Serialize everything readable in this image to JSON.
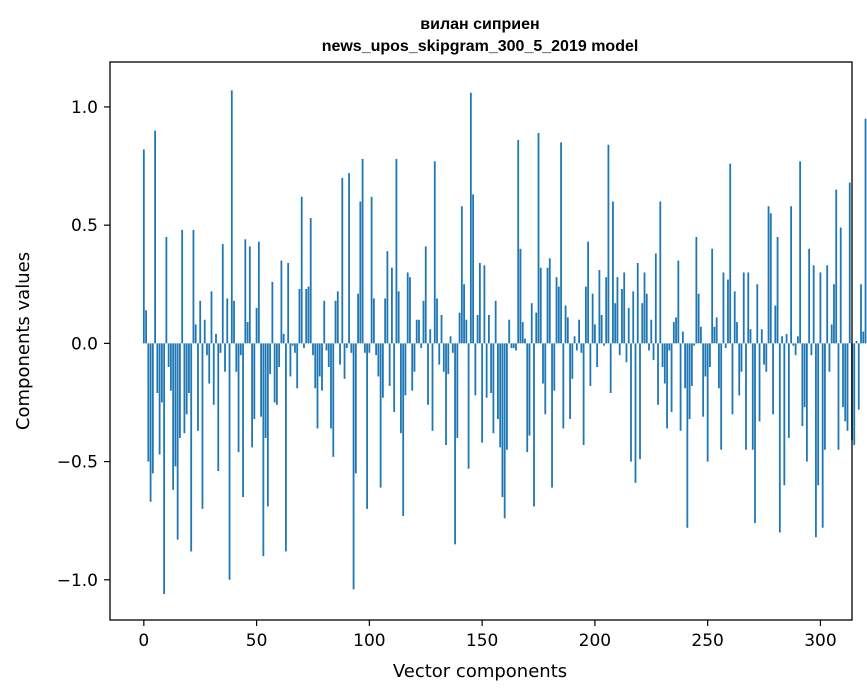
{
  "chart_data": {
    "type": "bar",
    "title": "вилан сиприен",
    "subtitle": "news_upos_skipgram_300_5_2019 model",
    "xlabel": "Vector components",
    "ylabel": "Components values",
    "xlim": [
      -15,
      314
    ],
    "ylim": [
      -1.17,
      1.19
    ],
    "xticks": [
      0,
      50,
      100,
      150,
      200,
      250,
      300
    ],
    "xtick_labels": [
      "0",
      "50",
      "100",
      "150",
      "200",
      "250",
      "300"
    ],
    "yticks": [
      -1.0,
      -0.5,
      0.0,
      0.5,
      1.0
    ],
    "ytick_labels": [
      "−1.0",
      "−0.5",
      "0.0",
      "0.5",
      "1.0"
    ],
    "color": "#1f77b4",
    "grid": false,
    "values": [
      0.82,
      0.14,
      -0.5,
      -0.67,
      -0.55,
      0.9,
      -0.21,
      -0.47,
      -0.25,
      -1.06,
      0.45,
      -0.1,
      -0.2,
      -0.62,
      -0.52,
      -0.83,
      -0.4,
      0.48,
      -0.38,
      -0.3,
      -0.21,
      -0.88,
      0.48,
      0.08,
      -0.37,
      0.18,
      -0.7,
      0.1,
      -0.05,
      -0.17,
      0.22,
      -0.26,
      0.04,
      -0.54,
      -0.04,
      0.42,
      -0.12,
      0.19,
      -1.0,
      1.07,
      0.18,
      -0.12,
      -0.46,
      -0.05,
      -0.65,
      0.44,
      0.09,
      0.41,
      -0.44,
      -0.32,
      0.15,
      0.43,
      -0.31,
      -0.9,
      -0.4,
      -0.69,
      -0.13,
      0.26,
      -0.25,
      -0.26,
      -0.1,
      0.35,
      0.04,
      -0.88,
      0.34,
      -0.14,
      -0.01,
      -0.04,
      -0.19,
      0.23,
      0.62,
      -0.02,
      0.23,
      0.24,
      0.53,
      -0.05,
      -0.19,
      -0.36,
      -0.14,
      -0.2,
      0.18,
      -0.03,
      -0.1,
      -0.36,
      -0.48,
      0.18,
      0.22,
      -0.09,
      0.7,
      -0.15,
      -0.02,
      0.72,
      -0.04,
      -1.04,
      -0.55,
      0.21,
      0.6,
      0.78,
      -0.04,
      -0.7,
      -0.04,
      0.62,
      0.19,
      -0.05,
      -0.14,
      -0.61,
      -0.23,
      0.19,
      0.39,
      -0.18,
      0.32,
      -0.29,
      0.78,
      0.22,
      -0.38,
      -0.73,
      -0.22,
      0.3,
      0.28,
      -0.2,
      -0.12,
      0.1,
      0.1,
      -0.02,
      0.18,
      0.41,
      -0.26,
      0.06,
      -0.37,
      0.77,
      0.19,
      -0.09,
      0.12,
      -0.12,
      -0.43,
      -0.13,
      0.03,
      -0.04,
      -0.85,
      -0.4,
      0.13,
      0.58,
      0.25,
      0.1,
      -0.53,
      1.06,
      0.63,
      -0.22,
      0.12,
      0.34,
      -0.42,
      0.33,
      -0.23,
      0.12,
      -0.21,
      -0.38,
      0.18,
      -0.32,
      -0.44,
      -0.65,
      -0.74,
      -0.45,
      0.1,
      -0.02,
      -0.02,
      -0.03,
      0.86,
      0.4,
      0.09,
      0.02,
      -0.46,
      -0.39,
      0.17,
      -0.69,
      0.13,
      0.89,
      0.32,
      -0.17,
      -0.3,
      0.32,
      0.36,
      -0.61,
      -0.2,
      0.28,
      0.24,
      0.85,
      -0.36,
      0.16,
      0.11,
      -0.32,
      -0.15,
      0.03,
      -0.03,
      0.1,
      -0.04,
      -0.43,
      0.24,
      0.43,
      -0.18,
      0.21,
      0.08,
      -0.1,
      0.31,
      0.12,
      -0.01,
      0.28,
      0.84,
      -0.21,
      0.6,
      0.17,
      0.28,
      -0.05,
      0.23,
      0.3,
      -0.08,
      0.15,
      -0.5,
      0.22,
      -0.59,
      0.34,
      -0.49,
      0.17,
      0.3,
      0.21,
      -0.03,
      0.1,
      -0.07,
      0.38,
      -0.26,
      0.6,
      -0.1,
      -0.17,
      -0.36,
      -0.03,
      -0.29,
      0.09,
      0.11,
      0.35,
      -0.37,
      0.05,
      -0.19,
      -0.78,
      -0.32,
      -0.18,
      -0.01,
      0.45,
      0.21,
      0.07,
      -0.31,
      -0.14,
      -0.5,
      -0.1,
      0.4,
      0.07,
      0.11,
      -0.19,
      -0.45,
      0.3,
      -0.02,
      0.27,
      0.76,
      -0.3,
      0.22,
      0.09,
      -0.22,
      -0.12,
      0.3,
      -0.45,
      0.3,
      0.06,
      -0.45,
      -0.76,
      0.25,
      -0.33,
      0.06,
      -0.09,
      -0.12,
      0.58,
      0.55,
      -0.3,
      0.16,
      0.45,
      -0.8,
      0.03,
      -0.6,
      0.04,
      -0.4,
      0.58,
      -0.01,
      -0.05,
      0.03,
      0.77,
      -0.35,
      -0.27,
      -0.5,
      0.4,
      -0.05,
      0.33,
      -0.82,
      -0.6,
      0.3,
      -0.78,
      -0.45,
      0.33,
      -0.12,
      0.08,
      0.25,
      0.65,
      -0.45,
      0.49,
      -0.27,
      -0.33,
      -0.37,
      0.68,
      -0.41,
      -0.43,
      0.01,
      -0.28,
      0.25,
      0.05,
      0.95
    ]
  }
}
